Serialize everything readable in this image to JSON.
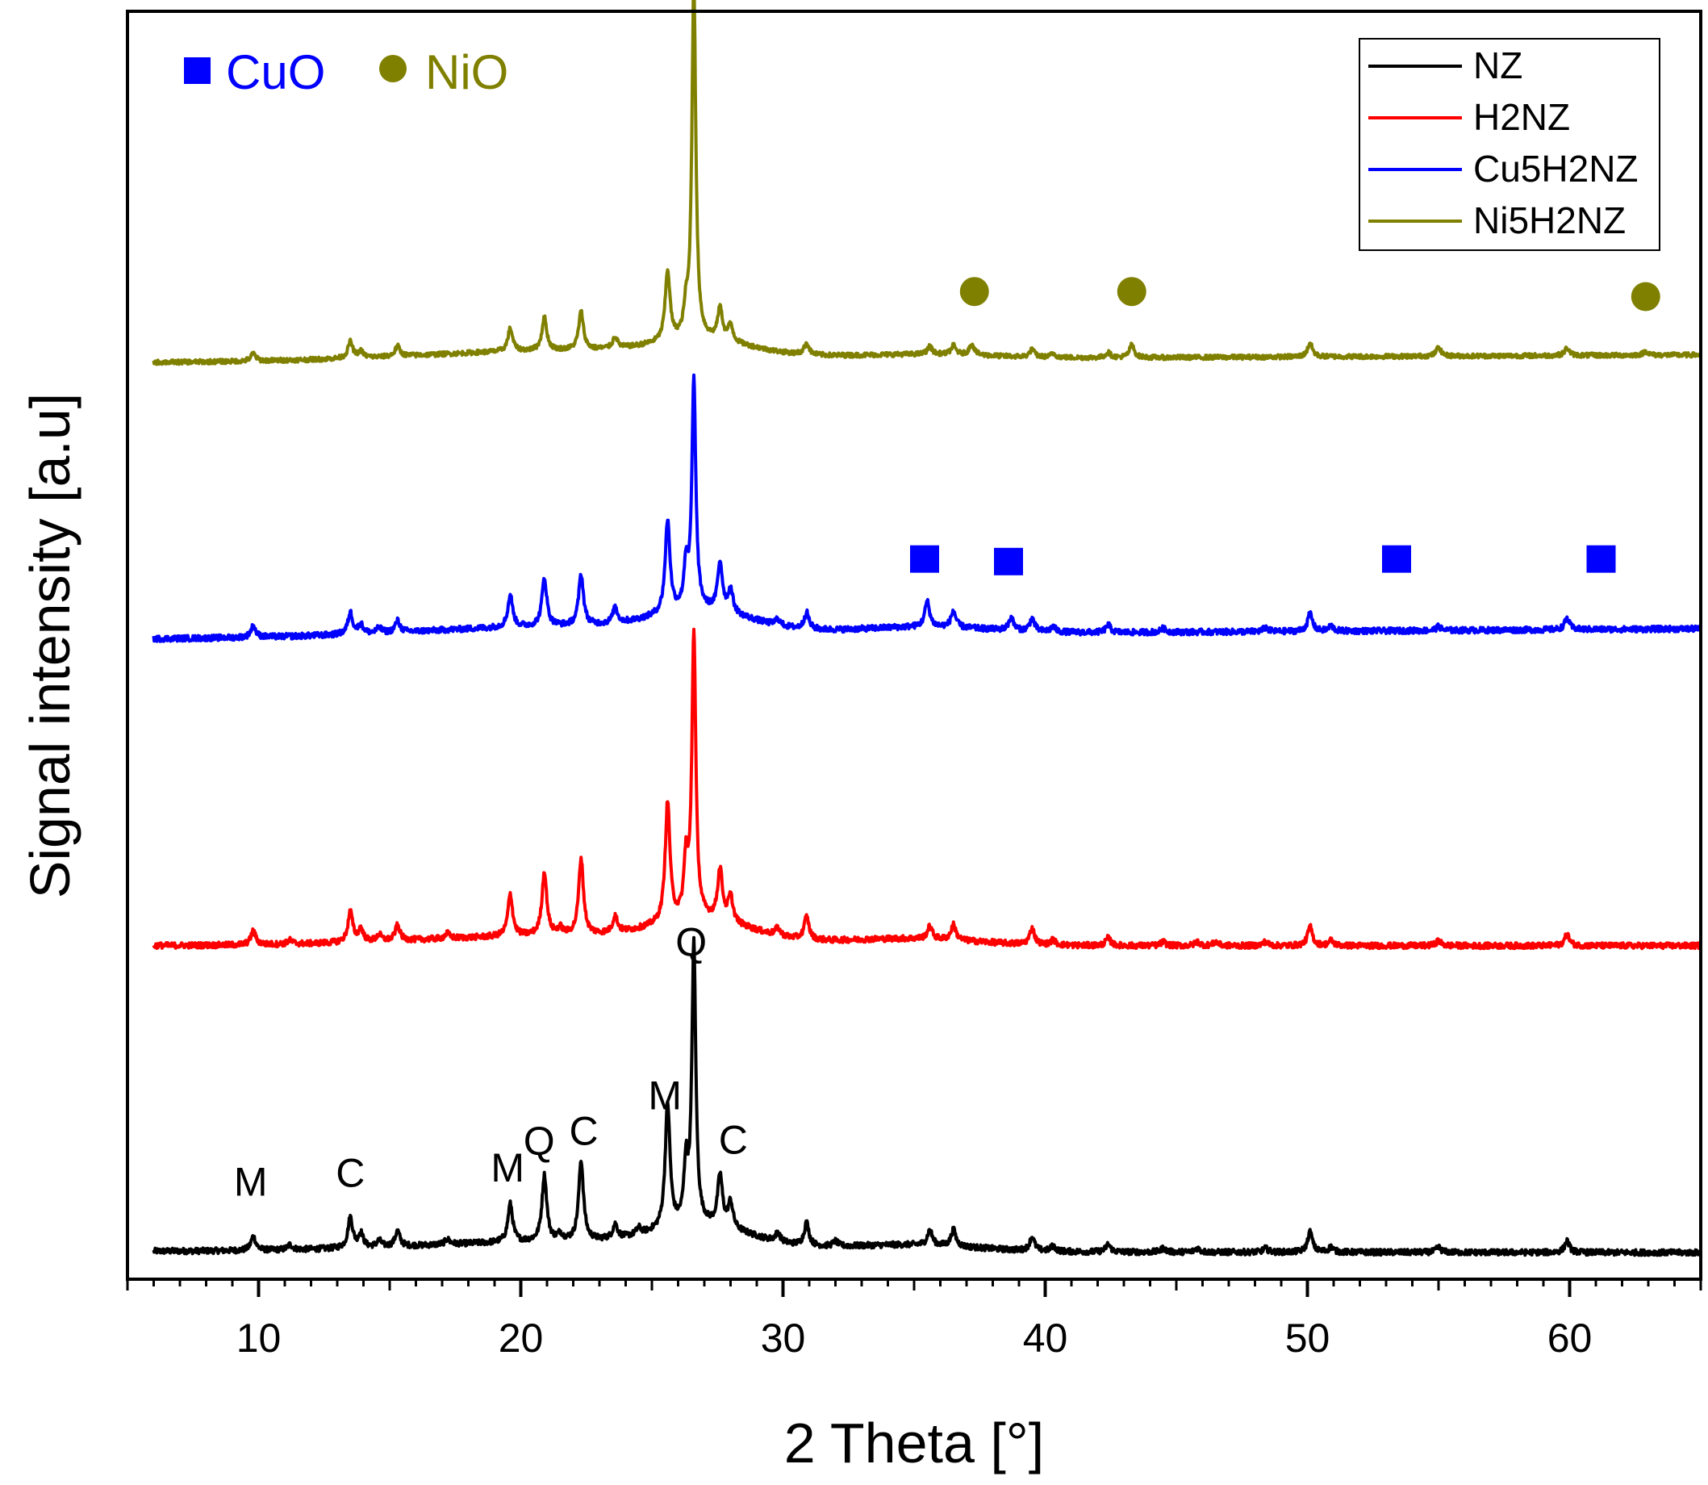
{
  "chart_data": {
    "type": "line",
    "xlabel": "2 Theta [°]",
    "ylabel": "Signal intensity [a.u]",
    "xlim": [
      5,
      65
    ],
    "ylim": [
      0,
      100
    ],
    "xticks": [
      10,
      20,
      30,
      40,
      50,
      60
    ],
    "legend_position": "top-right",
    "series": [
      {
        "name": "NZ",
        "color": "#000000",
        "offset": 0,
        "start": 6.0,
        "base": 2.2,
        "base_end": 2.1,
        "noise": 0.45,
        "peaks": [
          [
            9.8,
            1.1
          ],
          [
            11.2,
            0.4
          ],
          [
            13.5,
            2.4
          ],
          [
            13.9,
            1.1
          ],
          [
            14.6,
            0.5
          ],
          [
            15.3,
            1.2
          ],
          [
            17.2,
            0.4
          ],
          [
            19.6,
            3.0
          ],
          [
            20.9,
            5.2
          ],
          [
            21.5,
            0.5
          ],
          [
            22.3,
            6.3
          ],
          [
            23.6,
            1.1
          ],
          [
            24.5,
            0.5
          ],
          [
            25.6,
            9.8
          ],
          [
            26.3,
            4.5
          ],
          [
            26.6,
            22.0
          ],
          [
            27.6,
            4.0
          ],
          [
            28.0,
            2.0
          ],
          [
            29.8,
            0.7
          ],
          [
            30.9,
            1.8
          ],
          [
            32.0,
            0.4
          ],
          [
            35.6,
            1.2
          ],
          [
            36.5,
            1.3
          ],
          [
            39.5,
            1.1
          ],
          [
            40.3,
            0.4
          ],
          [
            42.4,
            0.6
          ],
          [
            44.5,
            0.3
          ],
          [
            45.8,
            0.3
          ],
          [
            48.4,
            0.3
          ],
          [
            50.1,
            1.6
          ],
          [
            50.9,
            0.4
          ],
          [
            55.0,
            0.4
          ],
          [
            59.9,
            0.9
          ]
        ],
        "bumps": [
          [
            27.0,
            1.5,
            2.5
          ],
          [
            35.0,
            0.5,
            3.5
          ]
        ]
      },
      {
        "name": "H2NZ",
        "color": "#ff0000",
        "offset": 0,
        "start": 6.0,
        "base": 26.3,
        "base_end": 26.3,
        "noise": 0.45,
        "peaks": [
          [
            9.8,
            1.1
          ],
          [
            11.2,
            0.3
          ],
          [
            13.5,
            2.4
          ],
          [
            13.9,
            1.0
          ],
          [
            14.6,
            0.5
          ],
          [
            15.3,
            1.2
          ],
          [
            17.2,
            0.4
          ],
          [
            19.6,
            3.3
          ],
          [
            20.9,
            5.0
          ],
          [
            21.5,
            0.5
          ],
          [
            22.3,
            6.0
          ],
          [
            23.6,
            1.3
          ],
          [
            25.6,
            9.4
          ],
          [
            26.3,
            4.4
          ],
          [
            26.6,
            22.5
          ],
          [
            27.6,
            4.0
          ],
          [
            28.0,
            2.0
          ],
          [
            29.8,
            0.6
          ],
          [
            30.9,
            1.8
          ],
          [
            35.6,
            1.0
          ],
          [
            36.5,
            1.2
          ],
          [
            39.5,
            1.3
          ],
          [
            40.3,
            0.4
          ],
          [
            42.4,
            0.6
          ],
          [
            44.5,
            0.3
          ],
          [
            45.8,
            0.3
          ],
          [
            46.5,
            0.3
          ],
          [
            48.4,
            0.3
          ],
          [
            50.1,
            1.5
          ],
          [
            50.9,
            0.4
          ],
          [
            55.0,
            0.4
          ],
          [
            59.9,
            0.9
          ]
        ],
        "bumps": [
          [
            27.0,
            1.5,
            2.5
          ],
          [
            35.0,
            0.5,
            3.5
          ]
        ]
      },
      {
        "name": "Cu5H2NZ",
        "color": "#0000ff",
        "offset": 0,
        "start": 6.0,
        "base": 50.5,
        "base_end": 51.3,
        "noise": 0.45,
        "peaks": [
          [
            9.8,
            0.9
          ],
          [
            13.5,
            1.7
          ],
          [
            13.9,
            0.7
          ],
          [
            14.6,
            0.4
          ],
          [
            15.3,
            0.9
          ],
          [
            19.6,
            2.5
          ],
          [
            20.9,
            3.8
          ],
          [
            22.3,
            4.0
          ],
          [
            23.6,
            1.2
          ],
          [
            25.6,
            7.3
          ],
          [
            26.3,
            3.4
          ],
          [
            26.6,
            18.0
          ],
          [
            27.6,
            3.8
          ],
          [
            28.0,
            1.8
          ],
          [
            29.8,
            0.5
          ],
          [
            30.9,
            1.3
          ],
          [
            35.5,
            2.0
          ],
          [
            36.5,
            1.3
          ],
          [
            38.7,
            1.0
          ],
          [
            39.5,
            1.0
          ],
          [
            40.3,
            0.4
          ],
          [
            42.4,
            0.6
          ],
          [
            44.5,
            0.3
          ],
          [
            48.4,
            0.3
          ],
          [
            50.1,
            1.4
          ],
          [
            50.9,
            0.4
          ],
          [
            55.0,
            0.3
          ],
          [
            59.9,
            0.9
          ]
        ],
        "bumps": [
          [
            27.0,
            1.4,
            2.5
          ],
          [
            35.5,
            0.5,
            3.5
          ]
        ]
      },
      {
        "name": "Ni5H2NZ",
        "color": "#808000",
        "offset": 0,
        "start": 6.0,
        "base": 72.3,
        "base_end": 72.9,
        "noise": 0.35,
        "peaks": [
          [
            9.8,
            0.6
          ],
          [
            13.5,
            1.3
          ],
          [
            13.9,
            0.5
          ],
          [
            15.3,
            0.8
          ],
          [
            19.6,
            1.8
          ],
          [
            20.9,
            2.6
          ],
          [
            22.3,
            3.0
          ],
          [
            23.6,
            0.9
          ],
          [
            25.6,
            5.5
          ],
          [
            26.3,
            2.0
          ],
          [
            26.6,
            28.0
          ],
          [
            27.6,
            2.5
          ],
          [
            28.0,
            1.3
          ],
          [
            30.9,
            0.9
          ],
          [
            35.6,
            0.6
          ],
          [
            36.5,
            0.7
          ],
          [
            37.2,
            0.9
          ],
          [
            39.5,
            0.6
          ],
          [
            40.3,
            0.3
          ],
          [
            42.4,
            0.4
          ],
          [
            43.3,
            1.0
          ],
          [
            50.1,
            1.1
          ],
          [
            55.0,
            0.7
          ],
          [
            59.9,
            0.6
          ],
          [
            62.9,
            0.3
          ]
        ],
        "bumps": [
          [
            27.0,
            1.0,
            2.5
          ],
          [
            35.5,
            0.3,
            3.5
          ]
        ]
      }
    ],
    "phase_labels": [
      {
        "label": "M",
        "x": 9.7,
        "y": 6.6
      },
      {
        "label": "C",
        "x": 13.5,
        "y": 7.3
      },
      {
        "label": "M",
        "x": 19.5,
        "y": 7.7
      },
      {
        "label": "Q",
        "x": 20.7,
        "y": 9.8
      },
      {
        "label": "C",
        "x": 22.4,
        "y": 10.6
      },
      {
        "label": "M",
        "x": 25.5,
        "y": 13.4
      },
      {
        "label": "Q",
        "x": 26.5,
        "y": 25.5
      },
      {
        "label": "C",
        "x": 28.1,
        "y": 9.9
      }
    ],
    "marker_legend": [
      {
        "label": "CuO",
        "symbol": "square",
        "color": "#0000ff"
      },
      {
        "label": "NiO",
        "symbol": "circle",
        "color": "#808000"
      }
    ],
    "cuo_markers": [
      {
        "x": 35.4,
        "y": 56.8
      },
      {
        "x": 38.6,
        "y": 56.6
      },
      {
        "x": 53.4,
        "y": 56.8
      },
      {
        "x": 61.2,
        "y": 56.8
      }
    ],
    "nio_markers": [
      {
        "x": 37.3,
        "y": 77.9
      },
      {
        "x": 43.3,
        "y": 77.9
      },
      {
        "x": 62.9,
        "y": 77.5
      }
    ]
  }
}
